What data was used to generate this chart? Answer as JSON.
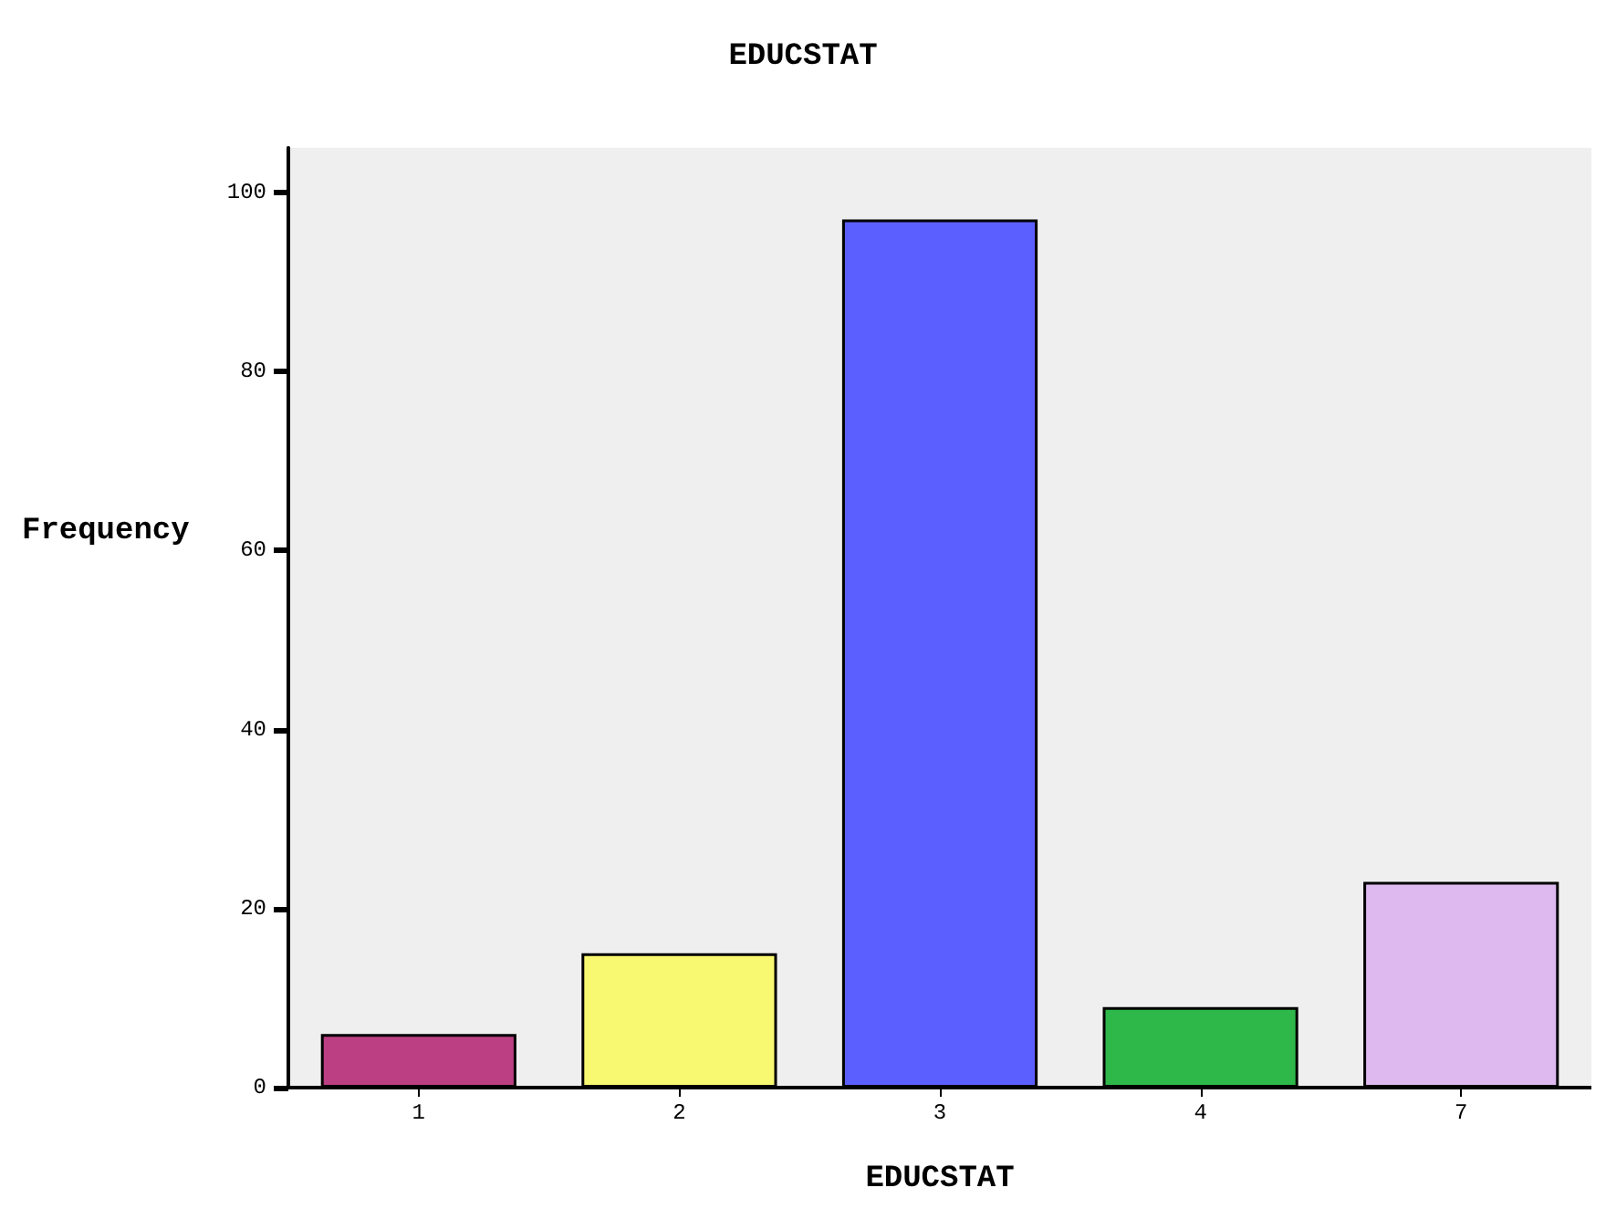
{
  "chart_data": {
    "type": "bar",
    "title": "EDUCSTAT",
    "xlabel": "EDUCSTAT",
    "ylabel": "Frequency",
    "categories": [
      "1",
      "2",
      "3",
      "4",
      "7"
    ],
    "values": [
      6,
      15,
      97,
      9,
      23
    ],
    "colors": [
      "#bb3f82",
      "#f9f871",
      "#5c5fff",
      "#2eb84a",
      "#ddb9f0"
    ],
    "ylim": [
      0,
      105
    ],
    "yticks": [
      0,
      20,
      40,
      60,
      80,
      100
    ],
    "grid": false
  }
}
